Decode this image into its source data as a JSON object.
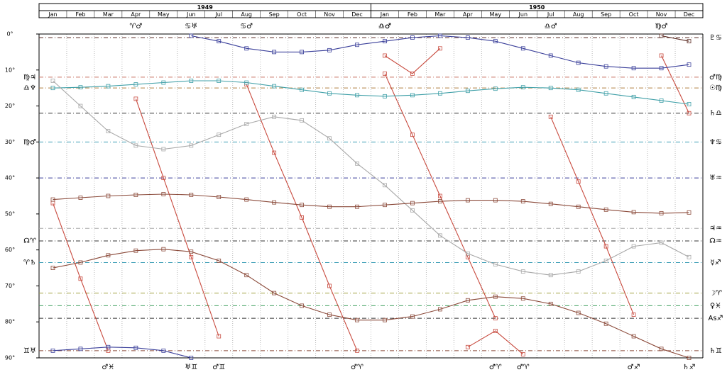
{
  "chart_data": {
    "type": "line",
    "y_inverted": true,
    "grid": true,
    "years": [
      "1949",
      "1950"
    ],
    "categories": [
      "Jan",
      "Feb",
      "Mar",
      "Apr",
      "May",
      "Jun",
      "Jul",
      "Aug",
      "Sep",
      "Oct",
      "Nov",
      "Dec",
      "Jan",
      "Feb",
      "Mar",
      "Apr",
      "May",
      "Jun",
      "Jul",
      "Aug",
      "Sep",
      "Oct",
      "Nov",
      "Dec"
    ],
    "ylim": [
      0,
      90
    ],
    "yticks": [
      {
        "value": 0,
        "label": "0°"
      },
      {
        "value": 10,
        "label": "10°"
      },
      {
        "value": 20,
        "label": "20°"
      },
      {
        "value": 30,
        "label": "30°"
      },
      {
        "value": 40,
        "label": "40°"
      },
      {
        "value": 50,
        "label": "50°"
      },
      {
        "value": 60,
        "label": "60°"
      },
      {
        "value": 70,
        "label": "70°"
      },
      {
        "value": 80,
        "label": "80°"
      },
      {
        "value": 90,
        "label": "90°"
      }
    ],
    "series": [
      {
        "color": "#c84a3e",
        "values": [
          47,
          68,
          88,
          null,
          null,
          null,
          null,
          null,
          null,
          null,
          null,
          null,
          null,
          null,
          null,
          null,
          null,
          null,
          null,
          null,
          null,
          null,
          null,
          null
        ],
        "bottom_label": "♂♓"
      },
      {
        "color": "#c84a3e",
        "values": [
          null,
          null,
          null,
          18,
          40,
          62,
          84,
          null,
          null,
          null,
          null,
          null,
          null,
          null,
          null,
          null,
          null,
          null,
          null,
          null,
          null,
          null,
          null,
          null
        ],
        "top_label": "♈♂",
        "bottom_label": "♂♊"
      },
      {
        "color": "#c84a3e",
        "values": [
          null,
          null,
          null,
          null,
          null,
          null,
          null,
          14,
          33,
          51,
          70,
          88,
          null,
          null,
          null,
          null,
          null,
          null,
          null,
          null,
          null,
          null,
          null,
          null
        ],
        "top_label": "♋♂",
        "bottom_label": "♂♈"
      },
      {
        "color": "#c84a3e",
        "values": [
          null,
          null,
          null,
          null,
          null,
          null,
          null,
          null,
          null,
          null,
          null,
          null,
          11,
          28,
          45,
          62,
          79,
          null,
          null,
          null,
          null,
          null,
          null,
          null
        ],
        "top_label": "♎♂",
        "bottom_label": "♂♈"
      },
      {
        "color": "#c84a3e",
        "values": [
          null,
          null,
          null,
          null,
          null,
          null,
          null,
          null,
          null,
          null,
          null,
          null,
          null,
          null,
          null,
          null,
          null,
          null,
          23,
          41,
          59,
          78,
          null,
          null
        ],
        "top_label": "♎♂",
        "bottom_label": "♂♐"
      },
      {
        "color": "#c84a3e",
        "values": [
          null,
          null,
          null,
          null,
          null,
          null,
          null,
          null,
          null,
          null,
          null,
          null,
          null,
          null,
          null,
          null,
          null,
          null,
          null,
          null,
          null,
          null,
          6,
          22
        ],
        "top_label": "♍♂"
      },
      {
        "color": "#c84a3e",
        "values": [
          null,
          null,
          null,
          null,
          null,
          null,
          null,
          null,
          null,
          null,
          null,
          null,
          6,
          11,
          4,
          null,
          null,
          null,
          null,
          null,
          null,
          null,
          null,
          null
        ],
        "top_label": "♎♂"
      },
      {
        "color": "#c84a3e",
        "values": [
          null,
          null,
          null,
          null,
          null,
          null,
          null,
          null,
          null,
          null,
          null,
          null,
          null,
          null,
          null,
          87,
          82.5,
          89,
          null,
          null,
          null,
          null,
          null,
          null
        ],
        "bottom_label": "♂♈"
      },
      {
        "color": "#3a3f9a",
        "values": [
          null,
          null,
          null,
          null,
          null,
          0.5,
          2,
          4,
          5,
          5,
          4.5,
          3,
          2,
          1,
          0.5,
          1,
          2,
          4,
          6,
          8,
          9,
          9.5,
          9.5,
          8.5
        ],
        "top_label": "♋♅"
      },
      {
        "color": "#3a3f9a",
        "values": [
          88,
          87.5,
          87,
          87.2,
          88,
          90,
          null,
          null,
          null,
          null,
          null,
          null,
          null,
          null,
          null,
          null,
          null,
          null,
          null,
          null,
          null,
          null,
          null,
          null
        ],
        "bottom_label": "♅♊"
      },
      {
        "color": "#40a0a8",
        "values": [
          15,
          14.8,
          14.5,
          14,
          13.5,
          13,
          13,
          13.5,
          14.5,
          15.5,
          16.5,
          17,
          17.3,
          17,
          16.5,
          15.8,
          15.2,
          14.8,
          15,
          15.5,
          16.5,
          17.5,
          18.5,
          19.5
        ]
      },
      {
        "color": "#a8a8a8",
        "values": [
          13,
          20,
          27,
          31,
          32,
          31,
          28,
          25,
          23,
          24,
          29,
          36,
          42,
          49,
          56,
          61,
          64,
          66,
          67,
          66,
          63,
          59,
          58,
          62
        ]
      },
      {
        "color": "#8b4a3a",
        "values": [
          46,
          45.5,
          45,
          44.7,
          44.5,
          44.7,
          45.3,
          46,
          46.8,
          47.5,
          48,
          48,
          47.5,
          47,
          46.5,
          46.2,
          46.2,
          46.5,
          47.2,
          48,
          48.8,
          49.5,
          49.8,
          49.6
        ]
      },
      {
        "color": "#8b4a3a",
        "values": [
          65,
          63.5,
          61.5,
          60.2,
          59.8,
          60.5,
          63,
          67,
          72,
          75.5,
          78,
          79.5,
          79.5,
          78.5,
          76.5,
          74,
          73,
          73.5,
          75,
          77.5,
          80.5,
          84,
          87.5,
          90
        ],
        "bottom_label": "♄♐"
      },
      {
        "color": "#5a2a22",
        "values": [
          null,
          null,
          null,
          null,
          null,
          null,
          null,
          null,
          null,
          null,
          null,
          null,
          null,
          null,
          null,
          null,
          null,
          null,
          null,
          null,
          null,
          null,
          0.5,
          2
        ]
      }
    ],
    "reference_lines": [
      {
        "value": 1,
        "color": "#5a2a22",
        "right_label": "♇♋"
      },
      {
        "value": 12,
        "color": "#c87060",
        "right_label": "♂♍",
        "left_label": "♍♃"
      },
      {
        "value": 15,
        "color": "#b08040",
        "right_label": "☉♍",
        "left_label": "♎♆"
      },
      {
        "value": 22,
        "color": "#333333",
        "right_label": "♄♎"
      },
      {
        "value": 30,
        "color": "#40a0b8",
        "right_label": "♆♋",
        "left_label": "♍♂"
      },
      {
        "value": 40,
        "color": "#3a3f9a",
        "right_label": "♅♒"
      },
      {
        "value": 54,
        "color": "#a8a8a8",
        "right_label": "♃♒"
      },
      {
        "value": 57.5,
        "color": "#333333",
        "right_label": "☊♒",
        "left_label": "☊♈"
      },
      {
        "value": 63.5,
        "color": "#40a0b8",
        "right_label": "☿♐",
        "left_label": "♈♄"
      },
      {
        "value": 72,
        "color": "#a0a040",
        "right_label": "☽♈"
      },
      {
        "value": 75.5,
        "color": "#40a060",
        "right_label": "♀♓"
      },
      {
        "value": 79,
        "color": "#333333",
        "right_label": "As♐"
      },
      {
        "value": 88,
        "color": "#8b4a3a",
        "right_label": "♄♊",
        "left_label": "♊♅"
      }
    ]
  }
}
